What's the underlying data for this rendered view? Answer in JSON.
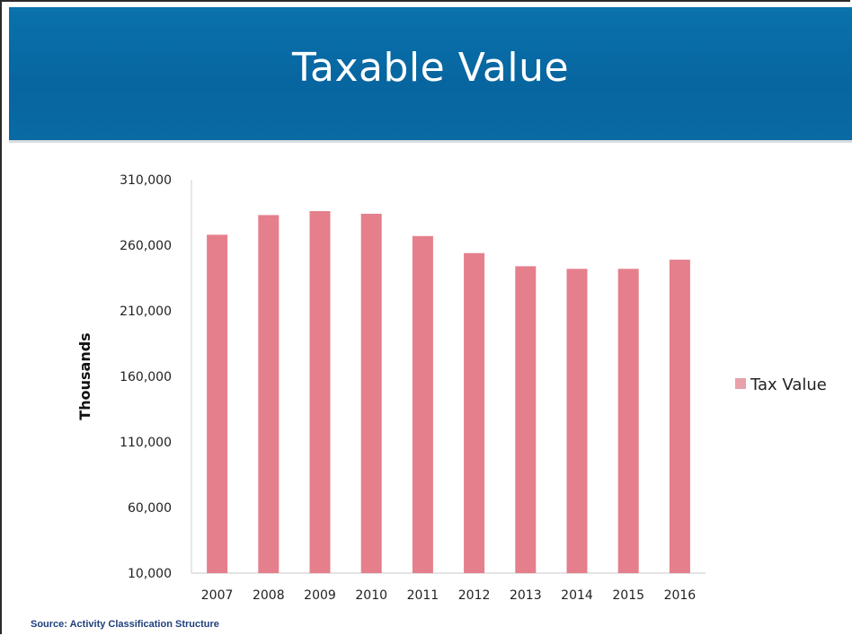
{
  "slide": {
    "title": "Taxable Value",
    "source_label": "Source",
    "source_text": "Activity Classification Structure"
  },
  "colors": {
    "banner": "#07659f",
    "bar": "#e57f8c",
    "legend_swatch": "#e8a0aa"
  },
  "chart_data": {
    "type": "bar",
    "categories": [
      "2007",
      "2008",
      "2009",
      "2010",
      "2011",
      "2012",
      "2013",
      "2014",
      "2015",
      "2016"
    ],
    "series": [
      {
        "name": "Tax Value",
        "values": [
          268000,
          283000,
          286000,
          284000,
          267000,
          254000,
          244000,
          242000,
          242000,
          249000
        ]
      }
    ],
    "ylabel": "Thousands",
    "xlabel": "",
    "ylim": [
      10000,
      310000
    ],
    "yticks": [
      10000,
      60000,
      110000,
      160000,
      210000,
      260000,
      310000
    ],
    "ytick_labels": [
      "10,000",
      "60,000",
      "110,000",
      "160,000",
      "210,000",
      "260,000",
      "310,000"
    ],
    "legend_position": "right",
    "grid": false
  }
}
